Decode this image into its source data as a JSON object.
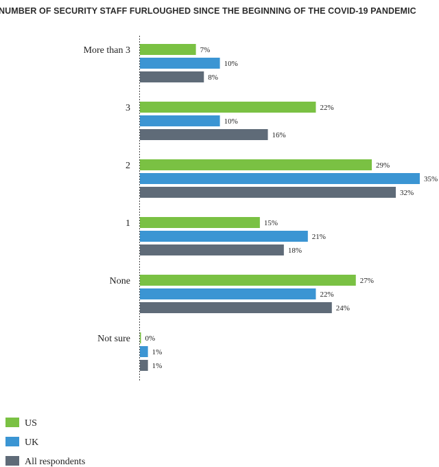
{
  "chart_data": {
    "type": "bar",
    "orientation": "horizontal",
    "title": "NUMBER OF SECURITY STAFF FURLOUGHED SINCE THE BEGINNING OF THE COVID-19 PANDEMIC",
    "categories": [
      "More than 3",
      "3",
      "2",
      "1",
      "None",
      "Not sure"
    ],
    "series": [
      {
        "name": "US",
        "values": [
          7,
          22,
          29,
          15,
          27,
          0
        ],
        "color": "#7ac143"
      },
      {
        "name": "UK",
        "values": [
          10,
          10,
          35,
          21,
          22,
          1
        ],
        "color": "#3b95d3"
      },
      {
        "name": "All respondents",
        "values": [
          8,
          16,
          32,
          18,
          24,
          1
        ],
        "color": "#5f6b78"
      }
    ],
    "value_suffix": "%",
    "xlim": [
      0,
      35
    ],
    "grid": false,
    "legend_position": "bottom-left"
  }
}
